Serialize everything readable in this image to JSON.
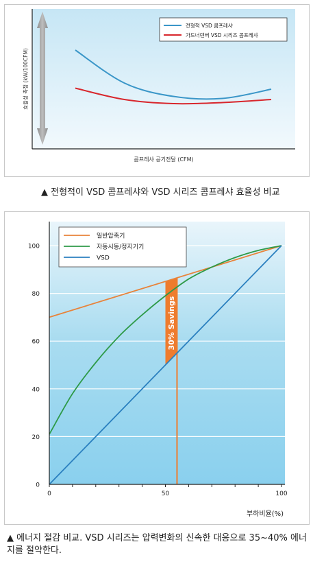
{
  "chart_data": [
    {
      "type": "line",
      "title": "",
      "xlabel": "콤프레샤 공기전달 (CFM)",
      "ylabel": "효율성 측정 (kW/100CFM)",
      "xlim": [
        0,
        100
      ],
      "ylim": [
        0,
        100
      ],
      "axis_ticks": false,
      "legend_placement": "top-right",
      "series": [
        {
          "name": "전형적 VSD 콤프레샤",
          "color": "#3a96c8",
          "x": [
            0,
            25,
            50,
            75,
            100
          ],
          "y": [
            80,
            48,
            35,
            33,
            42
          ]
        },
        {
          "name": "가드너덴버 VSD 시리즈 콤프레샤",
          "color": "#d8262c",
          "x": [
            0,
            25,
            50,
            75,
            100
          ],
          "y": [
            43,
            32,
            28,
            29,
            32
          ]
        }
      ]
    },
    {
      "type": "line",
      "title": "",
      "xlabel": "부하비율(%)",
      "ylabel": "",
      "xlim": [
        0,
        100
      ],
      "ylim": [
        0,
        100
      ],
      "xticks": [
        0,
        50,
        100
      ],
      "yticks": [
        0,
        20,
        40,
        60,
        80,
        100
      ],
      "grid": true,
      "legend_placement": "top-left",
      "series": [
        {
          "name": "일반압축기",
          "color": "#e8833a",
          "x": [
            0,
            100
          ],
          "y": [
            70,
            100
          ]
        },
        {
          "name": "자동시동/정지기기",
          "color": "#2e9a48",
          "x": [
            0,
            10,
            20,
            30,
            40,
            50,
            60,
            70,
            80,
            90,
            100
          ],
          "y": [
            21,
            38,
            51,
            62,
            71,
            79,
            86,
            91,
            95,
            98,
            100
          ]
        },
        {
          "name": "VSD",
          "color": "#2a7fbf",
          "x": [
            0,
            100
          ],
          "y": [
            0,
            100
          ]
        }
      ],
      "savings_band": {
        "x_from": 50,
        "x_to": 55,
        "label": "30% Savings",
        "color": "#ee7c2e"
      },
      "marker_line_x": 55
    }
  ],
  "captions": {
    "top": "▲ 전형적이 VSD 콤프레샤와 VSD 시리즈 콤프레샤 효율성 비교",
    "bottom": "▲ 에너지 절감 비교. VSD 시리즈는 압력변화의 신속한 대응으로 35~40% 에너지를 절약한다."
  }
}
